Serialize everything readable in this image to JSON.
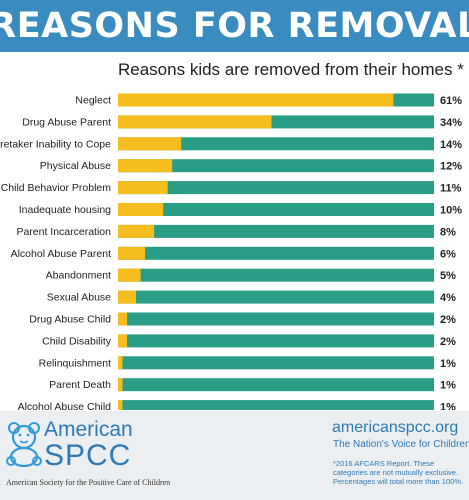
{
  "header": {
    "title": "REASONS FOR REMOVAL"
  },
  "subtitle": "Reasons kids are removed from their homes *",
  "colors": {
    "header_bg": "#3a8bc0",
    "bar_fill": "#f6bd1f",
    "bar_track": "#2a9d86",
    "brand_blue": "#2e7ab5"
  },
  "chart_data": {
    "type": "bar",
    "orientation": "horizontal",
    "title": "Reasons kids are removed from their homes *",
    "categories": [
      "Neglect",
      "Drug Abuse Parent",
      "Caretaker Inability to Cope",
      "Physical Abuse",
      "Child Behavior Problem",
      "Inadequate housing",
      "Parent Incarceration",
      "Alcohol Abuse Parent",
      "Abandonment",
      "Sexual Abuse",
      "Drug Abuse Child",
      "Child Disability",
      "Relinquishment",
      "Parent Death",
      "Alcohol Abuse Child"
    ],
    "values": [
      61,
      34,
      14,
      12,
      11,
      10,
      8,
      6,
      5,
      4,
      2,
      2,
      1,
      1,
      1
    ],
    "value_labels": [
      "61%",
      "34%",
      "14%",
      "12%",
      "11%",
      "10%",
      "8%",
      "6%",
      "5%",
      "4%",
      "2%",
      "2%",
      "1%",
      "1%",
      "1%"
    ],
    "unit": "%",
    "xlim": [
      0,
      70
    ],
    "grid": false,
    "legend": "none"
  },
  "footer": {
    "logo_line1": "American",
    "logo_line2": "SPCC",
    "logo_tagline": "American Society for the Positive Care of Children",
    "site": "americanspcc.org",
    "tagline": "The Nation's Voice for Children",
    "note": "*2016 AFCARS Report. These categories are not mutually exclusive. Percentages will total more than 100%."
  }
}
